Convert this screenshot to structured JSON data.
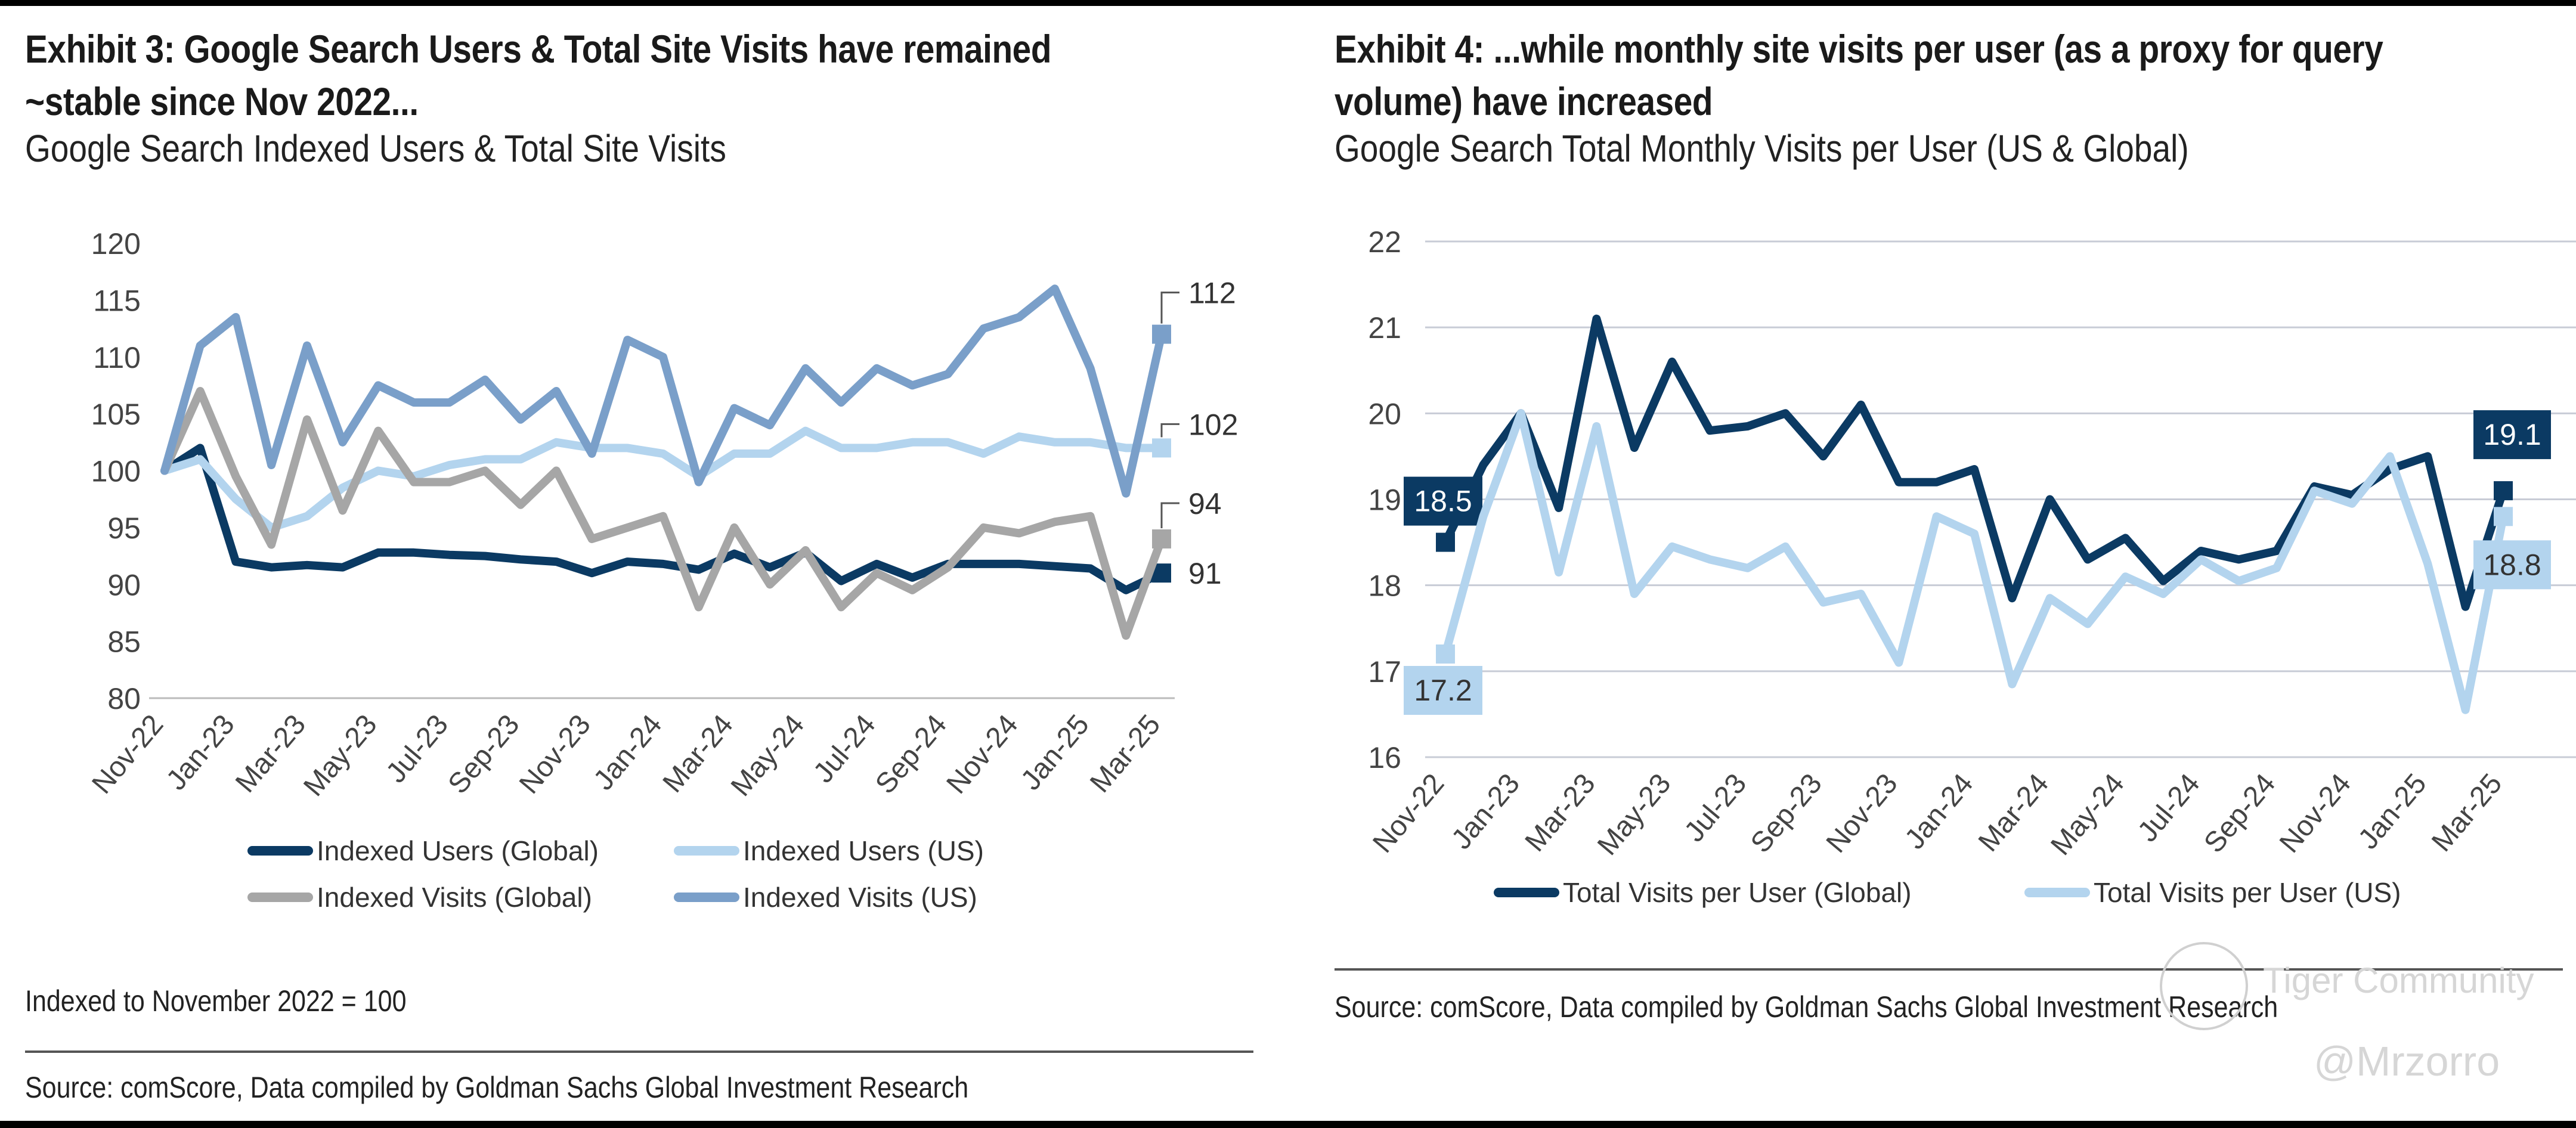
{
  "left": {
    "title": "Exhibit 3: Google Search Users & Total Site Visits have remained ~stable since Nov 2022...",
    "subtitle": "Google Search Indexed Users & Total Site Visits",
    "note": "Indexed to November 2022 = 100",
    "source": "Source: comScore, Data compiled by Goldman Sachs Global Investment Research"
  },
  "right": {
    "title": "Exhibit 4: ...while monthly site visits per user (as a proxy for query volume) have increased",
    "subtitle": "Google Search Total Monthly Visits per User (US & Global)",
    "source": "Source: comScore, Data compiled by Goldman Sachs Global Investment Research"
  },
  "watermark": {
    "brand": "Tiger Community",
    "handle": "@Mrzorro"
  },
  "chart_data": [
    {
      "type": "line",
      "title": "Google Search Indexed Users & Total Site Visits",
      "xlabel": "",
      "ylabel": "",
      "ylim": [
        80,
        120
      ],
      "yticks": [
        80,
        85,
        90,
        95,
        100,
        105,
        110,
        115,
        120
      ],
      "grid": false,
      "legend": "bottom",
      "x": [
        "Nov-22",
        "Dec-22",
        "Jan-23",
        "Feb-23",
        "Mar-23",
        "Apr-23",
        "May-23",
        "Jun-23",
        "Jul-23",
        "Aug-23",
        "Sep-23",
        "Oct-23",
        "Nov-23",
        "Dec-23",
        "Jan-24",
        "Feb-24",
        "Mar-24",
        "Apr-24",
        "May-24",
        "Jun-24",
        "Jul-24",
        "Aug-24",
        "Sep-24",
        "Oct-24",
        "Nov-24",
        "Dec-24",
        "Jan-25",
        "Feb-25",
        "Mar-25"
      ],
      "xtick_labels": [
        "Nov-22",
        "Jan-23",
        "Mar-23",
        "May-23",
        "Jul-23",
        "Sep-23",
        "Nov-23",
        "Jan-24",
        "Mar-24",
        "May-24",
        "Jul-24",
        "Sep-24",
        "Nov-24",
        "Jan-25",
        "Mar-25"
      ],
      "series": [
        {
          "name": "Indexed Users (Global)",
          "color": "#0b3a63",
          "end_label": "91",
          "values": [
            100,
            102,
            92,
            91.5,
            91.7,
            91.5,
            92.8,
            92.8,
            92.6,
            92.5,
            92.2,
            92,
            91,
            92,
            91.8,
            91.3,
            92.7,
            91.5,
            92.8,
            90.3,
            91.8,
            90.6,
            91.8,
            91.8,
            91.8,
            91.6,
            91.4,
            89.5,
            91
          ]
        },
        {
          "name": "Indexed Users (US)",
          "color": "#b3d4ee",
          "end_label": "102",
          "values": [
            100,
            101,
            97.5,
            95,
            96,
            98.5,
            100,
            99.5,
            100.5,
            101,
            101,
            102.5,
            102,
            102,
            101.5,
            99.5,
            101.5,
            101.5,
            103.5,
            102,
            102,
            102.5,
            102.5,
            101.5,
            103,
            102.5,
            102.5,
            102,
            102
          ]
        },
        {
          "name": "Indexed Visits (Global)",
          "color": "#a6a6a6",
          "end_label": "94",
          "values": [
            100,
            107,
            99.5,
            93.5,
            104.5,
            96.5,
            103.5,
            99,
            99,
            100,
            97,
            100,
            94,
            95,
            96,
            88,
            95,
            90,
            93,
            88,
            91,
            89.5,
            91.5,
            95,
            94.5,
            95.5,
            96,
            85.5,
            94
          ]
        },
        {
          "name": "Indexed Visits (US)",
          "color": "#7a9fc9",
          "end_label": "112",
          "values": [
            100,
            111,
            113.5,
            100.5,
            111,
            102.5,
            107.5,
            106,
            106,
            108,
            104.5,
            107,
            101.5,
            111.5,
            110,
            99,
            105.5,
            104,
            109,
            106,
            109,
            107.5,
            108.5,
            112.5,
            113.5,
            116,
            109,
            98,
            112
          ]
        }
      ]
    },
    {
      "type": "line",
      "title": "Google Search Total Monthly Visits per User (US & Global)",
      "xlabel": "",
      "ylabel": "",
      "ylim": [
        16,
        22
      ],
      "yticks": [
        16,
        17,
        18,
        19,
        20,
        21,
        22
      ],
      "grid": true,
      "legend": "bottom",
      "x": [
        "Nov-22",
        "Dec-22",
        "Jan-23",
        "Feb-23",
        "Mar-23",
        "Apr-23",
        "May-23",
        "Jun-23",
        "Jul-23",
        "Aug-23",
        "Sep-23",
        "Oct-23",
        "Nov-23",
        "Dec-23",
        "Jan-24",
        "Feb-24",
        "Mar-24",
        "Apr-24",
        "May-24",
        "Jun-24",
        "Jul-24",
        "Aug-24",
        "Sep-24",
        "Oct-24",
        "Nov-24",
        "Dec-24",
        "Jan-25",
        "Feb-25",
        "Mar-25"
      ],
      "xtick_labels": [
        "Nov-22",
        "Jan-23",
        "Mar-23",
        "May-23",
        "Jul-23",
        "Sep-23",
        "Nov-23",
        "Jan-24",
        "Mar-24",
        "May-24",
        "Jul-24",
        "Sep-24",
        "Nov-24",
        "Jan-25",
        "Mar-25"
      ],
      "series": [
        {
          "name": "Total Visits per User (Global)",
          "color": "#0b3a63",
          "start_label": "18.5",
          "end_label": "19.1",
          "values": [
            18.5,
            19.4,
            20.0,
            18.9,
            21.1,
            19.6,
            20.6,
            19.8,
            19.85,
            20.0,
            19.5,
            20.1,
            19.2,
            19.2,
            19.35,
            17.85,
            19.0,
            18.3,
            18.55,
            18.05,
            18.4,
            18.3,
            18.4,
            19.15,
            19.05,
            19.35,
            19.5,
            17.75,
            19.1
          ]
        },
        {
          "name": "Total Visits per User (US)",
          "color": "#b3d4ee",
          "start_label": "17.2",
          "end_label": "18.8",
          "values": [
            17.2,
            18.8,
            20.0,
            18.15,
            19.85,
            17.9,
            18.45,
            18.3,
            18.2,
            18.45,
            17.8,
            17.9,
            17.1,
            18.8,
            18.6,
            16.85,
            17.85,
            17.55,
            18.1,
            17.9,
            18.3,
            18.05,
            18.2,
            19.1,
            18.95,
            19.5,
            18.25,
            16.55,
            18.8
          ]
        }
      ]
    }
  ]
}
